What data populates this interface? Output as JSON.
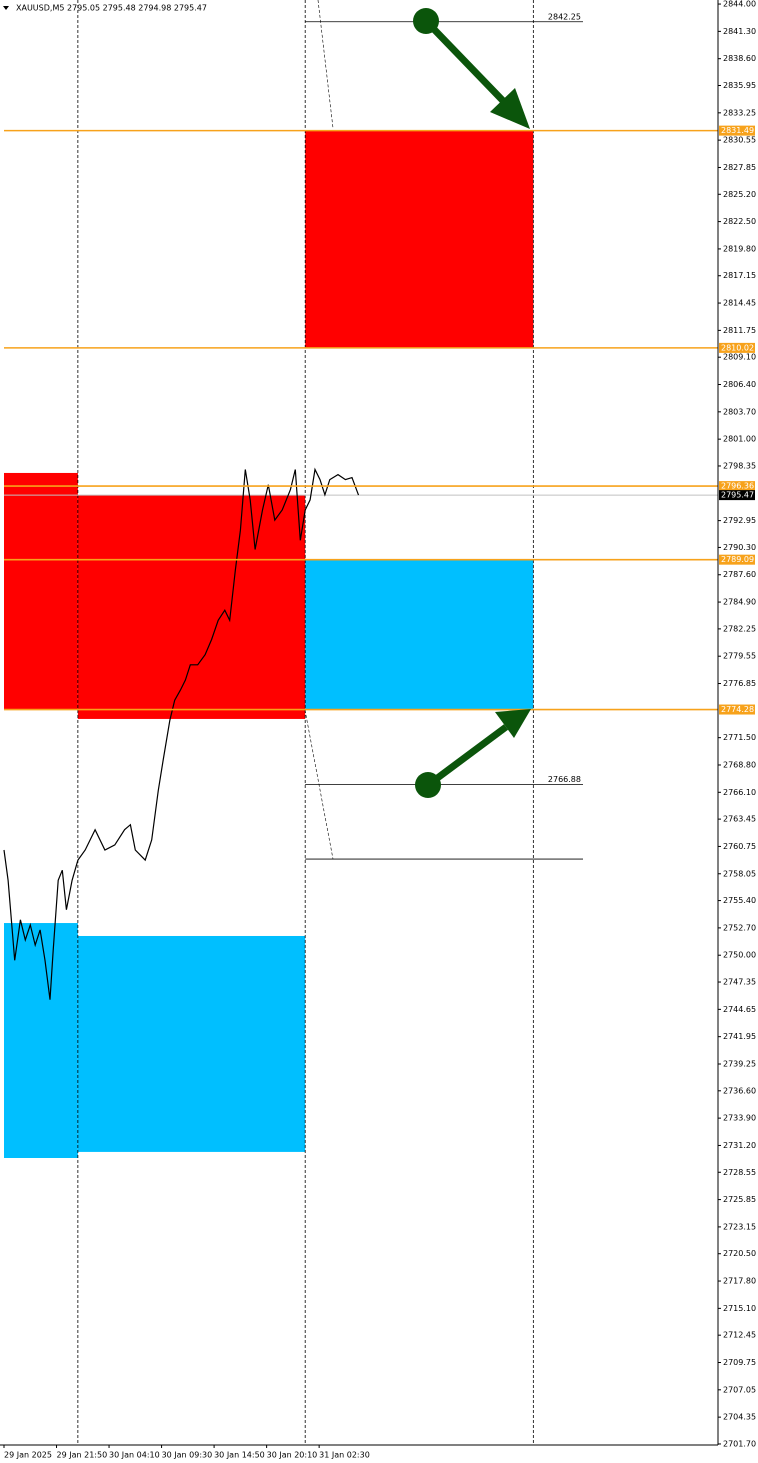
{
  "chart_data": {
    "type": "line",
    "title": "XAUUSD,M5  2795.05 2795.48 2794.98 2795.47",
    "xlim": [
      0,
      870
    ],
    "ylim": [
      2701.3,
      2844.4
    ],
    "xticks": [
      {
        "value": 0,
        "label": "29 Jan 2025"
      },
      {
        "value": 64,
        "label": "29 Jan 21:50"
      },
      {
        "value": 128,
        "label": "30 Jan 04:10"
      },
      {
        "value": 192,
        "label": "30 Jan 09:30"
      },
      {
        "value": 256,
        "label": "30 Jan 14:50"
      },
      {
        "value": 320,
        "label": "30 Jan 20:10"
      },
      {
        "value": 384,
        "label": "31 Jan 02:30"
      }
    ],
    "yticks": [
      {
        "value": 2844,
        "label": "2844.00"
      },
      {
        "value": 2841.3,
        "label": "2841.30"
      },
      {
        "value": 2838.6,
        "label": "2838.60"
      },
      2835.95,
      2833.25,
      {
        "value": 2830.55,
        "label": "2830.55"
      },
      2827.85,
      {
        "value": 2825.2,
        "label": "2825.20"
      },
      {
        "value": 2822.5,
        "label": "2822.50"
      },
      {
        "value": 2819.8,
        "label": "2819.80"
      },
      2817.15,
      2814.45,
      2811.75,
      {
        "value": 2809.1,
        "label": "2809.10"
      },
      {
        "value": 2806.4,
        "label": "2806.40"
      },
      {
        "value": 2803.7,
        "label": "2803.70"
      },
      {
        "value": 2801,
        "label": "2801.00"
      },
      2798.35,
      2792.95,
      {
        "value": 2790.3,
        "label": "2790.30"
      },
      {
        "value": 2787.6,
        "label": "2787.60"
      },
      {
        "value": 2784.9,
        "label": "2784.90"
      },
      2782.25,
      2779.55,
      2776.85,
      {
        "value": 2771.5,
        "label": "2771.50"
      },
      {
        "value": 2768.8,
        "label": "2768.80"
      },
      {
        "value": 2766.1,
        "label": "2766.10"
      },
      2763.45,
      2760.75,
      2758.05,
      {
        "value": 2755.4,
        "label": "2755.40"
      },
      {
        "value": 2752.7,
        "label": "2752.70"
      },
      {
        "value": 2750,
        "label": "2750.00"
      },
      2747.35,
      2744.65,
      2741.95,
      2739.25,
      {
        "value": 2736.6,
        "label": "2736.60"
      },
      {
        "value": 2733.9,
        "label": "2733.90"
      },
      {
        "value": 2731.2,
        "label": "2731.20"
      },
      2728.55,
      2725.85,
      2723.15,
      {
        "value": 2720.5,
        "label": "2720.50"
      },
      {
        "value": 2717.8,
        "label": "2717.80"
      },
      {
        "value": 2715.1,
        "label": "2715.10"
      },
      2712.45,
      2709.75,
      2707.05,
      2704.35,
      {
        "value": 2701.7,
        "label": "2701.70"
      }
    ],
    "x": [
      0,
      5,
      10,
      13,
      20,
      26,
      32,
      38,
      44,
      50,
      56,
      60,
      66,
      71,
      76,
      83,
      90,
      99,
      111,
      123,
      135,
      147,
      154,
      160,
      172,
      180,
      188,
      194,
      202,
      208,
      215,
      221,
      227,
      236,
      245,
      253,
      261,
      269,
      275,
      282,
      288,
      294,
      300,
      306,
      315,
      322,
      330,
      339,
      349,
      355,
      361,
      367,
      373,
      379,
      385,
      391,
      397,
      407,
      416,
      424,
      432
    ],
    "series": [
      {
        "color": "#000000",
        "values": [
          2760.4,
          2757.4,
          2752.5,
          2749.5,
          2753.5,
          2751.5,
          2753.0,
          2751.0,
          2752.5,
          2749.5,
          2745.6,
          2750.5,
          2757.4,
          2758.4,
          2754.5,
          2757.4,
          2759.4,
          2760.4,
          2762.4,
          2760.4,
          2760.9,
          2762.4,
          2762.9,
          2760.4,
          2759.4,
          2761.4,
          2766.3,
          2769.3,
          2773.2,
          2775.2,
          2776.2,
          2777.2,
          2778.7,
          2778.7,
          2779.7,
          2781.2,
          2783.1,
          2784.1,
          2783.1,
          2788.1,
          2792.0,
          2798.0,
          2795.0,
          2790.1,
          2794.0,
          2796.5,
          2793.0,
          2794.0,
          2796.0,
          2798.0,
          2791.0,
          2794.0,
          2795.0,
          2798.0,
          2797.0,
          2795.5,
          2797.0,
          2797.5,
          2797.0,
          2797.2,
          2795.47
        ]
      }
    ],
    "zones": [
      {
        "color": "#ff0000",
        "x0": 367,
        "x1": 645,
        "low": 2810.02,
        "high": 2831.49
      },
      {
        "color": "#00bfff",
        "x0": 367,
        "x1": 645,
        "low": 2774.28,
        "high": 2789.09
      },
      {
        "color": "#ff0000",
        "x0": 0,
        "x1": 90,
        "low": 2774.33,
        "high": 2797.66
      },
      {
        "color": "#ff0000",
        "x0": 90,
        "x1": 367,
        "low": 2773.35,
        "high": 2795.48
      },
      {
        "color": "#00bfff",
        "x0": 0,
        "x1": 90,
        "low": 2729.96,
        "high": 2753.18
      },
      {
        "color": "#00bfff",
        "x0": 90,
        "x1": 367,
        "low": 2730.56,
        "high": 2751.9
      }
    ],
    "separators": [
      90,
      367,
      645
    ],
    "levels_color": "#f7a21b",
    "levels": [
      2831.49,
      2810.02,
      2796.36,
      2789.09,
      2774.28
    ],
    "current_price": 2795.47,
    "targets": [
      2842.25,
      2766.88
    ],
    "guide_lines": [
      2759.5
    ]
  }
}
